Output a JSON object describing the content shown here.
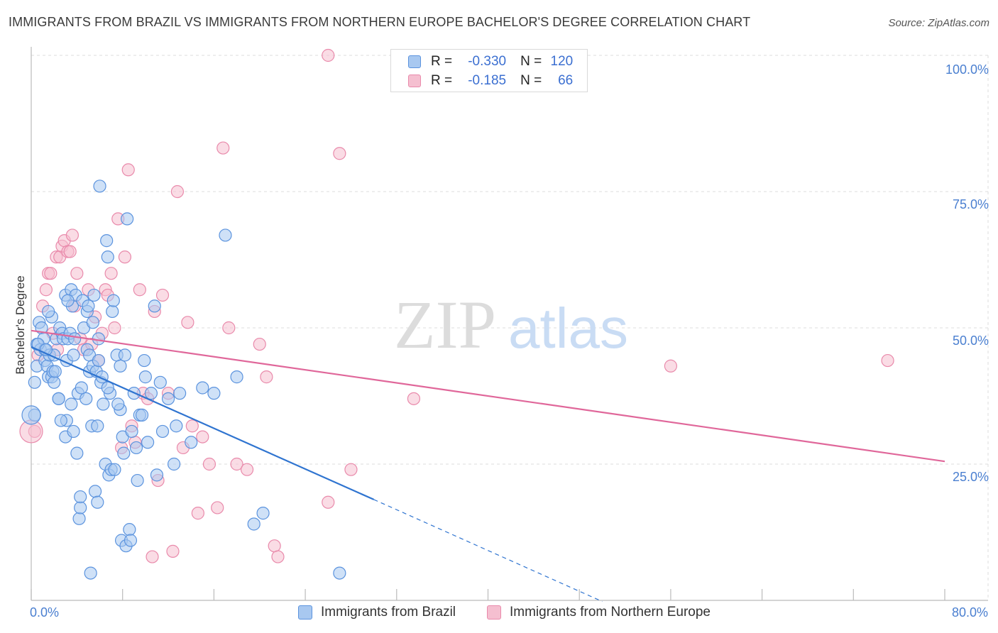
{
  "header": {
    "title": "IMMIGRANTS FROM BRAZIL VS IMMIGRANTS FROM NORTHERN EUROPE BACHELOR'S DEGREE CORRELATION CHART",
    "source": "Source: ZipAtlas.com"
  },
  "legend": {
    "brazil": {
      "r_label": "R =",
      "r_value": "-0.330",
      "n_label": "N =",
      "n_value": "120"
    },
    "europe": {
      "r_label": "R =",
      "r_value": "-0.185",
      "n_label": "N =",
      "n_value": "66"
    }
  },
  "watermark": {
    "zip": "ZIP",
    "atlas": "atlas"
  },
  "colors": {
    "brazil_fill": "#a8c8f0",
    "brazil_stroke": "#5b93de",
    "brazil_line": "#2f74d0",
    "europe_fill": "#f5bfd0",
    "europe_stroke": "#e98aab",
    "europe_line": "#e0679a",
    "tick_label": "#4a7fd0",
    "grid": "#dddddd"
  },
  "chart_data": {
    "type": "scatter",
    "title": "IMMIGRANTS FROM BRAZIL VS IMMIGRANTS FROM NORTHERN EUROPE BACHELOR'S DEGREE CORRELATION CHART",
    "xlabel": "",
    "ylabel": "Bachelor's Degree",
    "xlim": [
      0,
      80
    ],
    "ylim": [
      0,
      100
    ],
    "x_tick_labels": [
      "0.0%",
      "80.0%"
    ],
    "y_ticks": [
      {
        "value": 25,
        "label": "25.0%"
      },
      {
        "value": 50,
        "label": "50.0%"
      },
      {
        "value": 75,
        "label": "75.0%"
      },
      {
        "value": 100,
        "label": "100.0%"
      }
    ],
    "grid": true,
    "legend_position": "top-center",
    "series": [
      {
        "name": "Immigrants from Brazil",
        "r": -0.33,
        "n": 120,
        "trend": {
          "x0": 0,
          "y0": 46.5,
          "x1": 30,
          "y1": 18.5,
          "dashed_to_x": 50,
          "dashed_to_y": -0.2
        },
        "points": [
          [
            0.3,
            40
          ],
          [
            0.3,
            34
          ],
          [
            0.5,
            43
          ],
          [
            0.5,
            47
          ],
          [
            0.7,
            51
          ],
          [
            0.8,
            46
          ],
          [
            0.9,
            50
          ],
          [
            1.1,
            48
          ],
          [
            1.2,
            46
          ],
          [
            1.2,
            44
          ],
          [
            1.4,
            43
          ],
          [
            1.5,
            41
          ],
          [
            1.6,
            45
          ],
          [
            1.8,
            52
          ],
          [
            1.8,
            41
          ],
          [
            1.9,
            42
          ],
          [
            2,
            45
          ],
          [
            2,
            40
          ],
          [
            2.2,
            48
          ],
          [
            2.4,
            37
          ],
          [
            2.4,
            37
          ],
          [
            2.5,
            50
          ],
          [
            2.7,
            49
          ],
          [
            2.8,
            48
          ],
          [
            3,
            56
          ],
          [
            3,
            30
          ],
          [
            3.1,
            33
          ],
          [
            3.1,
            44
          ],
          [
            3.2,
            48
          ],
          [
            3.4,
            49
          ],
          [
            3.5,
            36
          ],
          [
            3.5,
            57
          ],
          [
            3.6,
            54
          ],
          [
            3.7,
            31
          ],
          [
            3.8,
            48
          ],
          [
            3.9,
            56
          ],
          [
            4,
            27
          ],
          [
            4.1,
            38
          ],
          [
            4.2,
            15
          ],
          [
            4.3,
            17
          ],
          [
            4.3,
            19
          ],
          [
            4.5,
            55
          ],
          [
            4.6,
            50
          ],
          [
            4.8,
            37
          ],
          [
            4.9,
            46
          ],
          [
            4.9,
            53
          ],
          [
            5,
            54
          ],
          [
            5.1,
            42
          ],
          [
            5.1,
            45
          ],
          [
            5.2,
            5
          ],
          [
            5.3,
            32
          ],
          [
            5.4,
            43
          ],
          [
            5.5,
            56
          ],
          [
            5.6,
            20
          ],
          [
            5.7,
            42
          ],
          [
            5.8,
            18
          ],
          [
            5.8,
            32
          ],
          [
            5.9,
            44
          ],
          [
            6.1,
            40
          ],
          [
            6,
            76
          ],
          [
            6.3,
            36
          ],
          [
            6.5,
            25
          ],
          [
            6.6,
            66
          ],
          [
            6.7,
            63
          ],
          [
            6.8,
            23
          ],
          [
            6.9,
            38
          ],
          [
            7,
            24
          ],
          [
            7.1,
            53
          ],
          [
            7.2,
            55
          ],
          [
            7.3,
            24
          ],
          [
            7.5,
            45
          ],
          [
            7.8,
            43
          ],
          [
            7.8,
            35
          ],
          [
            7.9,
            11
          ],
          [
            8,
            30
          ],
          [
            8.1,
            27
          ],
          [
            8.3,
            10
          ],
          [
            8.4,
            70
          ],
          [
            8.6,
            13
          ],
          [
            8.7,
            11
          ],
          [
            9,
            38
          ],
          [
            9.2,
            28
          ],
          [
            9.5,
            34
          ],
          [
            9.7,
            34
          ],
          [
            9.9,
            44
          ],
          [
            10,
            41
          ],
          [
            10.5,
            38
          ],
          [
            10.8,
            54
          ],
          [
            11,
            23
          ],
          [
            11.5,
            31
          ],
          [
            12,
            37
          ],
          [
            12.5,
            25
          ],
          [
            13,
            38
          ],
          [
            14,
            29
          ],
          [
            15,
            39
          ],
          [
            16,
            38
          ],
          [
            17,
            67
          ],
          [
            18,
            41
          ],
          [
            19.5,
            14
          ],
          [
            20.3,
            16
          ],
          [
            27,
            5
          ],
          [
            1.5,
            53
          ],
          [
            2.6,
            33
          ],
          [
            3.2,
            55
          ],
          [
            4.4,
            39
          ],
          [
            5.9,
            48
          ],
          [
            6.2,
            41
          ],
          [
            7.6,
            36
          ],
          [
            8.8,
            31
          ],
          [
            9.3,
            22
          ],
          [
            10.2,
            29
          ],
          [
            11.3,
            40
          ],
          [
            12.7,
            32
          ],
          [
            0.6,
            47
          ],
          [
            1.3,
            46
          ],
          [
            2.1,
            42
          ],
          [
            3.7,
            45
          ],
          [
            5.4,
            51
          ],
          [
            6.7,
            39
          ],
          [
            8.2,
            45
          ]
        ]
      },
      {
        "name": "Immigrants from Northern Europe",
        "r": -0.185,
        "n": 66,
        "trend": {
          "x0": 0,
          "y0": 49.5,
          "x1": 80,
          "y1": 25.5
        },
        "points": [
          [
            0.3,
            31
          ],
          [
            0.6,
            45
          ],
          [
            1,
            54
          ],
          [
            1.3,
            57
          ],
          [
            1.5,
            60
          ],
          [
            1.7,
            60
          ],
          [
            1.9,
            49
          ],
          [
            2.2,
            63
          ],
          [
            2.3,
            46
          ],
          [
            2.5,
            63
          ],
          [
            2.7,
            65
          ],
          [
            2.9,
            66
          ],
          [
            3.2,
            64
          ],
          [
            3.4,
            64
          ],
          [
            3.6,
            67
          ],
          [
            4,
            60
          ],
          [
            4.3,
            48
          ],
          [
            4.6,
            46
          ],
          [
            5,
            57
          ],
          [
            5.3,
            47
          ],
          [
            5.6,
            52
          ],
          [
            5.9,
            44
          ],
          [
            6.2,
            49
          ],
          [
            6.5,
            57
          ],
          [
            6.7,
            56
          ],
          [
            7,
            60
          ],
          [
            7.3,
            50
          ],
          [
            7.6,
            70
          ],
          [
            7.9,
            28
          ],
          [
            8.2,
            63
          ],
          [
            8.5,
            79
          ],
          [
            8.8,
            32
          ],
          [
            9.1,
            29
          ],
          [
            9.5,
            57
          ],
          [
            9.8,
            38
          ],
          [
            10.2,
            37
          ],
          [
            10.6,
            8
          ],
          [
            10.8,
            53
          ],
          [
            11.1,
            22
          ],
          [
            11.5,
            56
          ],
          [
            12,
            38
          ],
          [
            12.4,
            9
          ],
          [
            12.8,
            75
          ],
          [
            13.3,
            28
          ],
          [
            13.7,
            51
          ],
          [
            14.1,
            32
          ],
          [
            14.6,
            16
          ],
          [
            15,
            30
          ],
          [
            15.6,
            25
          ],
          [
            16.3,
            17
          ],
          [
            16.8,
            83
          ],
          [
            17.3,
            50
          ],
          [
            18,
            25
          ],
          [
            18.9,
            24
          ],
          [
            20,
            47
          ],
          [
            20.6,
            41
          ],
          [
            21.3,
            10
          ],
          [
            21.6,
            8
          ],
          [
            26,
            18
          ],
          [
            27,
            82
          ],
          [
            28,
            24
          ],
          [
            33.5,
            37
          ],
          [
            26,
            100
          ],
          [
            56,
            43
          ],
          [
            75,
            44
          ],
          [
            3.8,
            54
          ]
        ]
      }
    ]
  },
  "bottom_legend": {
    "brazil": "Immigrants from Brazil",
    "europe": "Immigrants from Northern Europe"
  }
}
